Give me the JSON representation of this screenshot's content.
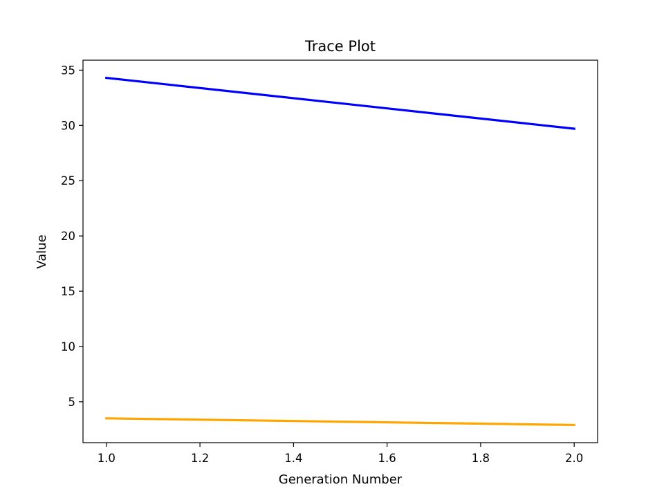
{
  "chart_data": {
    "type": "line",
    "title": "Trace Plot",
    "xlabel": "Generation Number",
    "ylabel": "Value",
    "xlim": [
      0.95,
      2.05
    ],
    "ylim": [
      1.3,
      35.9
    ],
    "xticks": [
      1.0,
      1.2,
      1.4,
      1.6,
      1.8,
      2.0
    ],
    "xtick_labels": [
      "1.0",
      "1.2",
      "1.4",
      "1.6",
      "1.8",
      "2.0"
    ],
    "yticks": [
      5,
      10,
      15,
      20,
      25,
      30,
      35
    ],
    "ytick_labels": [
      "5",
      "10",
      "15",
      "20",
      "25",
      "30",
      "35"
    ],
    "grid": false,
    "legend": "none",
    "x": [
      1,
      2
    ],
    "series": [
      {
        "color": "#0000ff",
        "values": [
          34.3,
          29.7
        ]
      },
      {
        "color": "#ffa500",
        "values": [
          3.5,
          2.9
        ]
      }
    ]
  }
}
